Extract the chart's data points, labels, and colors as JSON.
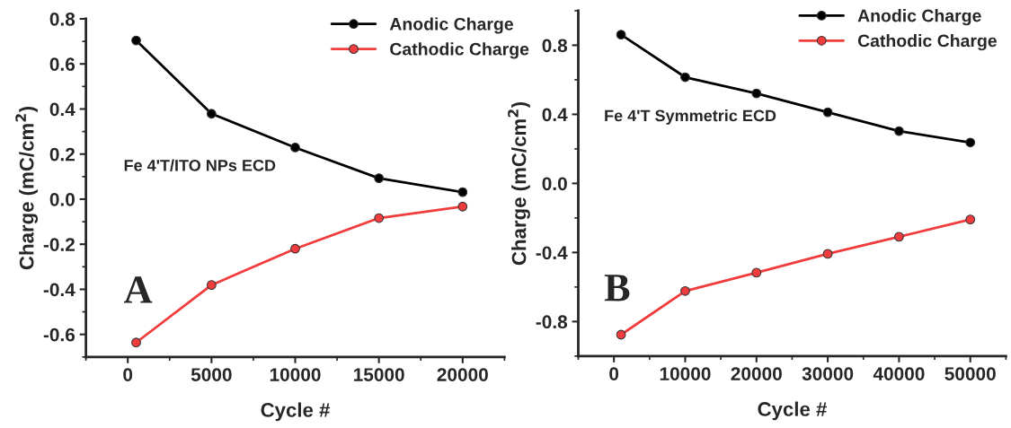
{
  "chart_data": [
    {
      "type": "line",
      "xlabel": "Cycle #",
      "ylabel": "Charge (mC/cm$^{2}$)",
      "xlim": [
        -2500,
        22500
      ],
      "xticks": [
        0,
        5000,
        10000,
        15000,
        20000
      ],
      "ylim": [
        -0.7,
        0.8
      ],
      "yticks": [
        -0.6,
        -0.4,
        -0.2,
        {
          "value": 0,
          "label": "0.0"
        },
        0.2,
        0.4,
        0.6,
        0.8
      ],
      "marker": "circle",
      "legend": "top right",
      "grid": false,
      "x": [
        500,
        5000,
        10000,
        15000,
        20000
      ],
      "series": [
        {
          "name": "Anodic Charge",
          "color": "#000000",
          "values": [
            0.704,
            0.379,
            0.229,
            0.093,
            0.031
          ]
        },
        {
          "name": "Cathodic Charge",
          "color": "#f03c3c",
          "values": [
            -0.636,
            -0.381,
            -0.22,
            -0.084,
            -0.033
          ]
        }
      ],
      "annotations": [
        "A",
        "Fe 4'T/ITO NPs ECD"
      ]
    },
    {
      "type": "line",
      "xlabel": "Cycle #",
      "ylabel": "Charge (mC/cm$^{2}$)",
      "xlim": [
        -5000,
        55000
      ],
      "xticks": [
        0,
        10000,
        20000,
        30000,
        40000,
        50000
      ],
      "ylim": [
        -1.0,
        1.0
      ],
      "yticks": [
        -0.8,
        -0.4,
        {
          "value": 0,
          "label": "0.0"
        },
        0.4,
        0.8
      ],
      "marker": "circle",
      "legend": "top right",
      "grid": false,
      "x": [
        1000,
        10000,
        20000,
        30000,
        40000,
        50000
      ],
      "series": [
        {
          "name": "Anodic Charge",
          "color": "#000000",
          "values": [
            0.861,
            0.615,
            0.521,
            0.412,
            0.303,
            0.237
          ]
        },
        {
          "name": "Cathodic Charge",
          "color": "#f03c3c",
          "values": [
            -0.876,
            -0.623,
            -0.517,
            -0.408,
            -0.309,
            -0.209
          ]
        }
      ],
      "annotations": [
        "B",
        "Fe 4'T Symmetric ECD"
      ]
    }
  ]
}
